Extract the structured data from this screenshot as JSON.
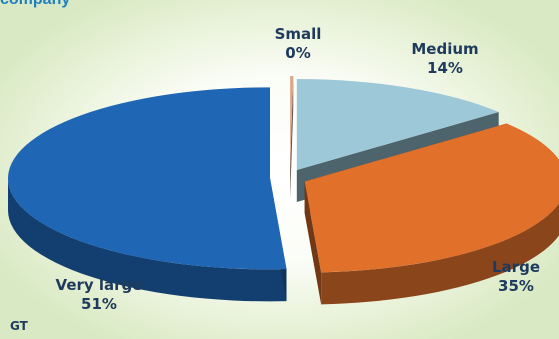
{
  "heading": "company",
  "source": "GT",
  "chart_data": {
    "type": "pie",
    "style": "3d-exploded",
    "slices": [
      {
        "label": "Small",
        "value": 0,
        "display": "0%",
        "color": "#d9a98c"
      },
      {
        "label": "Medium",
        "value": 14,
        "display": "14%",
        "color": "#9cc8d8"
      },
      {
        "label": "Large",
        "value": 35,
        "display": "35%",
        "color": "#e0702a"
      },
      {
        "label": "Very large",
        "value": 51,
        "display": "51%",
        "color": "#1f66b4"
      }
    ]
  }
}
